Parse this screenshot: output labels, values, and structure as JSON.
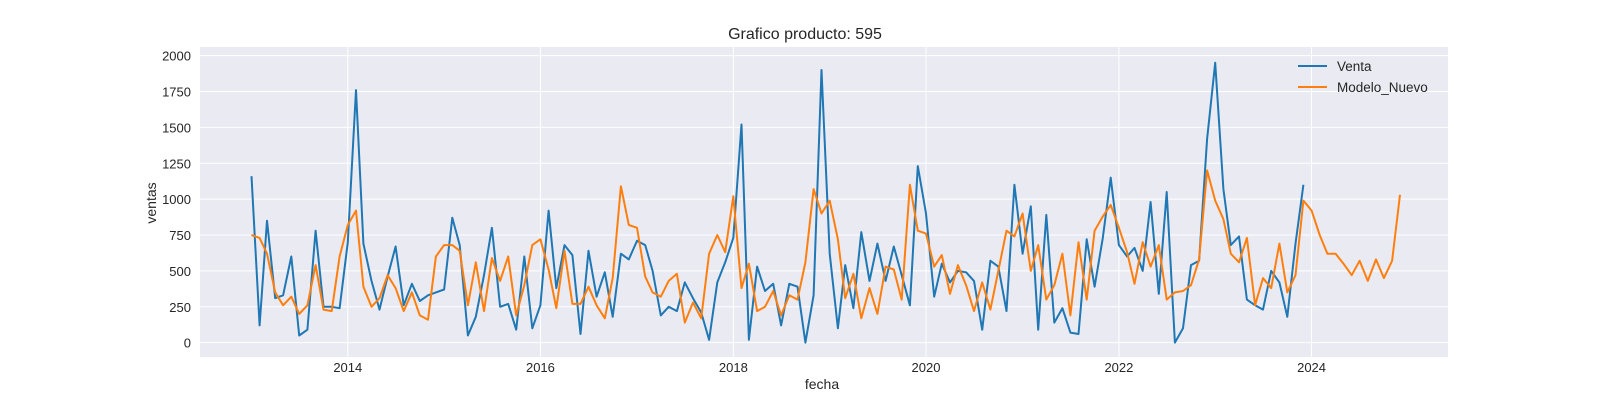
{
  "chart_data": {
    "type": "line",
    "title": "Grafico producto: 595",
    "xlabel": "fecha",
    "ylabel": "ventas",
    "xlim": [
      "2012-06-20",
      "2025-06-01"
    ],
    "ylim": [
      -100,
      2060
    ],
    "x_ticks": [
      {
        "date": "2014-01-01",
        "label": "2014"
      },
      {
        "date": "2016-01-01",
        "label": "2016"
      },
      {
        "date": "2018-01-01",
        "label": "2018"
      },
      {
        "date": "2020-01-01",
        "label": "2020"
      },
      {
        "date": "2022-01-01",
        "label": "2022"
      },
      {
        "date": "2024-01-01",
        "label": "2024"
      }
    ],
    "y_ticks": [
      0,
      250,
      500,
      750,
      1000,
      1250,
      1500,
      1750,
      2000
    ],
    "grid": true,
    "legend_position": "top-right",
    "colors": {
      "plot_background": "#eaeaf2",
      "grid": "#ffffff",
      "venta": "#1f77b4",
      "modelo_nuevo": "#ff7f0e"
    },
    "series": [
      {
        "name": "Venta",
        "color": "#1f77b4",
        "start": "2013-01",
        "values": [
          1160,
          120,
          850,
          310,
          330,
          600,
          50,
          90,
          780,
          250,
          250,
          240,
          700,
          1760,
          690,
          430,
          230,
          460,
          670,
          260,
          410,
          290,
          330,
          350,
          370,
          870,
          680,
          50,
          180,
          470,
          800,
          250,
          270,
          90,
          600,
          100,
          260,
          920,
          380,
          680,
          610,
          60,
          640,
          320,
          490,
          180,
          620,
          580,
          710,
          680,
          500,
          190,
          250,
          220,
          420,
          310,
          210,
          20,
          420,
          560,
          730,
          1520,
          20,
          530,
          360,
          410,
          120,
          410,
          390,
          0,
          330,
          1900,
          620,
          100,
          540,
          240,
          770,
          430,
          690,
          430,
          670,
          470,
          260,
          1230,
          900,
          320,
          550,
          420,
          500,
          490,
          430,
          90,
          570,
          530,
          220,
          1100,
          620,
          950,
          90,
          890,
          140,
          240,
          70,
          60,
          720,
          390,
          730,
          1150,
          680,
          600,
          660,
          500,
          980,
          340,
          1050,
          0,
          100,
          540,
          570,
          1420,
          1950,
          1070,
          680,
          740,
          300,
          260,
          230,
          500,
          420,
          180,
          690,
          1100
        ]
      },
      {
        "name": "Modelo_Nuevo",
        "color": "#ff7f0e",
        "start": "2013-01",
        "values": [
          750,
          730,
          620,
          350,
          260,
          320,
          200,
          260,
          540,
          230,
          220,
          600,
          820,
          920,
          390,
          250,
          310,
          470,
          380,
          220,
          350,
          190,
          160,
          600,
          680,
          680,
          640,
          260,
          560,
          220,
          590,
          430,
          600,
          190,
          400,
          680,
          720,
          510,
          240,
          640,
          270,
          270,
          390,
          260,
          170,
          450,
          1090,
          820,
          800,
          460,
          350,
          320,
          430,
          480,
          140,
          280,
          170,
          620,
          750,
          630,
          1020,
          380,
          550,
          220,
          250,
          360,
          190,
          330,
          300,
          560,
          1070,
          900,
          990,
          720,
          310,
          480,
          170,
          380,
          200,
          530,
          510,
          300,
          1100,
          780,
          760,
          530,
          610,
          340,
          540,
          400,
          220,
          420,
          230,
          500,
          780,
          740,
          900,
          500,
          680,
          300,
          400,
          620,
          190,
          700,
          300,
          780,
          880,
          960,
          800,
          630,
          410,
          700,
          530,
          680,
          300,
          350,
          360,
          400,
          580,
          1200,
          990,
          860,
          620,
          560,
          730,
          260,
          450,
          380,
          690,
          350,
          470,
          990,
          920,
          750,
          620,
          620,
          550,
          470,
          570,
          430,
          580,
          450,
          570,
          1030
        ]
      }
    ]
  }
}
